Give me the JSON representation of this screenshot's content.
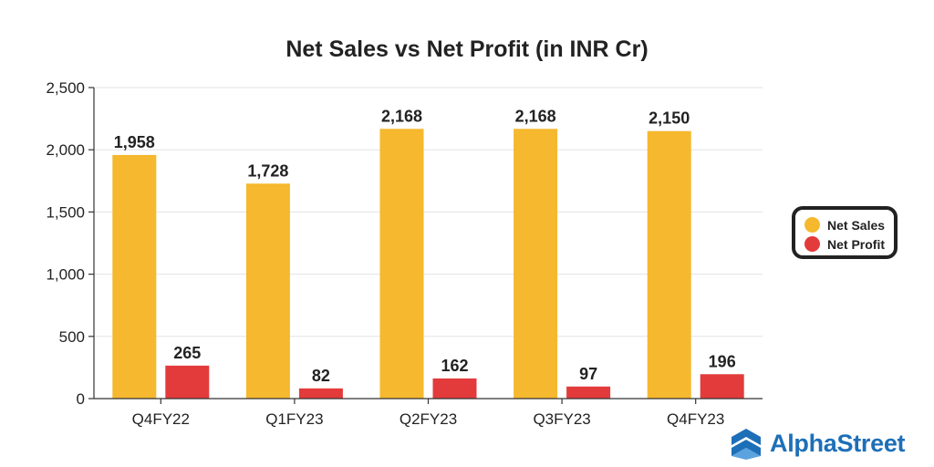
{
  "chart_data": {
    "type": "bar",
    "title": "Net Sales vs Net Profit (in INR Cr)",
    "xlabel": "",
    "ylabel": "",
    "categories": [
      "Q4FY22",
      "Q1FY23",
      "Q2FY23",
      "Q3FY23",
      "Q4FY23"
    ],
    "series": [
      {
        "name": "Net Sales",
        "values": [
          1958,
          1728,
          2168,
          2168,
          2150
        ],
        "labels": [
          "1,958",
          "1,728",
          "2,168",
          "2,168",
          "2,150"
        ],
        "color": "#f5b82e"
      },
      {
        "name": "Net Profit",
        "values": [
          265,
          82,
          162,
          97,
          196
        ],
        "labels": [
          "265",
          "82",
          "162",
          "97",
          "196"
        ],
        "color": "#e33b3b"
      }
    ],
    "ylim": [
      0,
      2500
    ],
    "yticks": [
      0,
      500,
      1000,
      1500,
      2000,
      2500
    ],
    "ytick_labels": [
      "0",
      "500",
      "1,000",
      "1,500",
      "2,000",
      "2,500"
    ],
    "grid": true,
    "legend": "right"
  },
  "brand": {
    "name": "AlphaStreet",
    "icon": "alphastreet-logo-icon",
    "color": "#1d6fb8"
  }
}
